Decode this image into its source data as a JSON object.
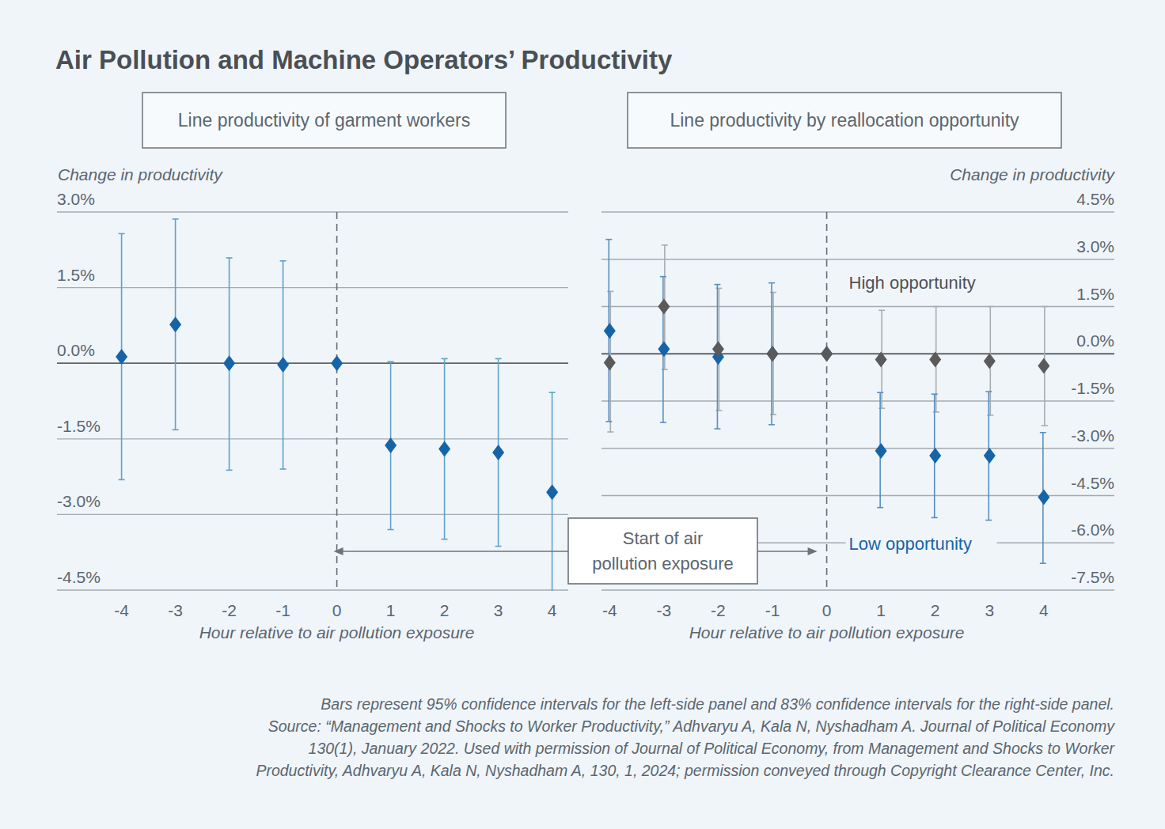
{
  "title": "Air Pollution and Machine Operators’ Productivity",
  "annotation": [
    "Start of air",
    "pollution exposure"
  ],
  "footnote": [
    "Bars represent 95% confidence intervals for the left-side panel and 83% confidence intervals for the right-side panel.",
    "Source: “Management and Shocks to Worker Productivity,” Adhvaryu A, Kala N, Nyshadham A. Journal of Political Economy",
    "130(1), January 2022. Used with permission of Journal of Political Economy, from Management and Shocks to Worker",
    "Productivity, Adhvaryu A, Kala N, Nyshadham A, 130, 1, 2024; permission conveyed through Copyright Clearance Center, Inc."
  ],
  "chart_data": [
    {
      "type": "point",
      "title": "Line productivity of garment workers",
      "xlabel": "Hour relative to air pollution exposure",
      "ylabel": "Change in productivity",
      "x": [
        -4,
        -3,
        -2,
        -1,
        0,
        1,
        2,
        3,
        4
      ],
      "xlim": [
        -5.2,
        4.3
      ],
      "xticks": [
        -4,
        -3,
        -2,
        -1,
        0,
        1,
        2,
        3,
        4
      ],
      "ylim": [
        -4.5,
        3.0
      ],
      "yticks": [
        {
          "value": 3.0,
          "label": "3.0%"
        },
        {
          "value": 1.5,
          "label": "1.5%"
        },
        {
          "value": 0,
          "label": "0.0%"
        },
        {
          "value": -1.5,
          "label": "-1.5%"
        },
        {
          "value": -3.0,
          "label": "-3.0%"
        },
        {
          "value": -4.5,
          "label": "-4.5%"
        }
      ],
      "grid": true,
      "reference_line": 0,
      "series": [
        {
          "color": "#1664a8",
          "marker": "diamond",
          "values": [
            0.13,
            0.77,
            0,
            -0.03,
            0,
            -1.63,
            -1.7,
            -1.77,
            -2.56
          ],
          "lower": [
            -2.31,
            -1.32,
            -2.12,
            -2.1,
            null,
            -3.3,
            -3.49,
            -3.63,
            -4.55
          ],
          "upper": [
            2.57,
            2.86,
            2.09,
            2.03,
            null,
            0.03,
            0.09,
            0.09,
            -0.58
          ]
        }
      ]
    },
    {
      "type": "point",
      "title": "Line productivity by reallocation opportunity",
      "xlabel": "Hour relative to air pollution exposure",
      "ylabel": "Change in productivity",
      "x": [
        -4,
        -3,
        -2,
        -1,
        0,
        1,
        2,
        3,
        4
      ],
      "xlim": [
        -4.15,
        5.3
      ],
      "xticks": [
        -4,
        -3,
        -2,
        -1,
        0,
        1,
        2,
        3,
        4
      ],
      "ylim": [
        -7.5,
        4.5
      ],
      "yticks": [
        {
          "value": 4.5,
          "label": "4.5%"
        },
        {
          "value": 3.0,
          "label": "3.0%"
        },
        {
          "value": 1.5,
          "label": "1.5%"
        },
        {
          "value": 0,
          "label": "0.0%"
        },
        {
          "value": -1.5,
          "label": "-1.5%"
        },
        {
          "value": -3.0,
          "label": "-3.0%"
        },
        {
          "value": -4.5,
          "label": "-4.5%"
        },
        {
          "value": -6.0,
          "label": "-6.0%"
        },
        {
          "value": -7.5,
          "label": "-7.5%"
        }
      ],
      "grid": true,
      "reference_line": 0,
      "series": [
        {
          "name": "High opportunity",
          "color": "#5a5a5a",
          "marker": "diamond",
          "values": [
            -0.28,
            1.5,
            0.15,
            0,
            0,
            -0.18,
            -0.18,
            -0.23,
            -0.38
          ],
          "lower": [
            -2.48,
            -0.5,
            -1.8,
            -1.93,
            null,
            -1.73,
            -1.85,
            -1.95,
            -2.28
          ],
          "upper": [
            1.98,
            3.45,
            2.08,
            1.95,
            null,
            1.38,
            1.5,
            1.5,
            1.5
          ]
        },
        {
          "name": "Low opportunity",
          "color": "#1664a8",
          "marker": "diamond",
          "values": [
            0.73,
            0.15,
            -0.1,
            0,
            0,
            -3.08,
            -3.23,
            -3.23,
            -4.55
          ],
          "lower": [
            -2.15,
            -2.18,
            -2.38,
            -2.25,
            null,
            -4.88,
            -5.2,
            -5.28,
            -6.65
          ],
          "upper": [
            3.63,
            2.45,
            2.2,
            2.25,
            null,
            -1.23,
            -1.28,
            -1.2,
            -2.5
          ]
        }
      ]
    }
  ]
}
